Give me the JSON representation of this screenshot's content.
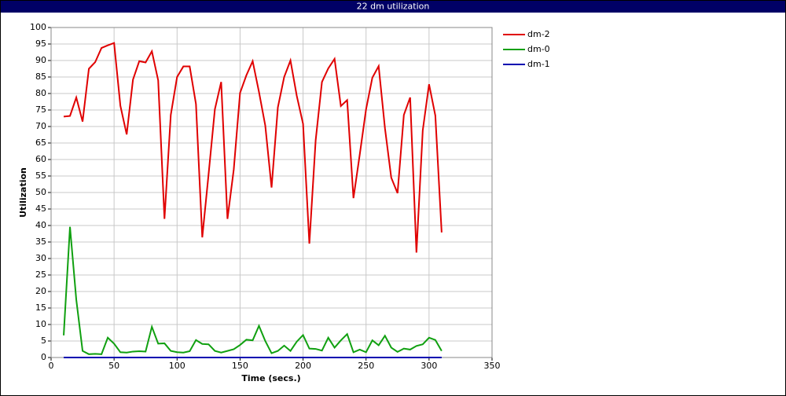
{
  "chart_data": {
    "type": "line",
    "title": "22 dm utilization",
    "xlabel": "Time (secs.)",
    "ylabel": "Utilization",
    "x": [
      10,
      15,
      20,
      25,
      30,
      35,
      40,
      45,
      50,
      55,
      60,
      65,
      70,
      75,
      80,
      85,
      90,
      95,
      100,
      105,
      110,
      115,
      120,
      125,
      130,
      135,
      140,
      145,
      150,
      155,
      160,
      165,
      170,
      175,
      180,
      185,
      190,
      195,
      200,
      205,
      210,
      215,
      220,
      225,
      230,
      235,
      240,
      245,
      250,
      255,
      260,
      265,
      270,
      275,
      280,
      285,
      290,
      295,
      300,
      305,
      310
    ],
    "series": [
      {
        "name": "dm-2",
        "color": "#e00000",
        "values": [
          73,
          73.2,
          78.8,
          71.5,
          87.5,
          89.5,
          93.8,
          94.6,
          95.3,
          76.3,
          67.6,
          84.2,
          89.8,
          89.4,
          92.8,
          84,
          42,
          73.5,
          85,
          88.2,
          88.2,
          76.8,
          36.4,
          55.5,
          75.2,
          83.5,
          42,
          57,
          80.2,
          85.5,
          89.8,
          80.5,
          70.3,
          51.5,
          75.8,
          85,
          90,
          79.3,
          70.8,
          34.5,
          65.8,
          83.5,
          87.6,
          90.5,
          76.2,
          78,
          48.3,
          61.5,
          75.2,
          84.8,
          88.3,
          69.5,
          54.5,
          49.8,
          73.5,
          78.8,
          31.8,
          68.8,
          82.8,
          73.3,
          37.9
        ]
      },
      {
        "name": "dm-0",
        "color": "#10a010",
        "values": [
          6.7,
          39.6,
          17.5,
          2,
          1,
          1.1,
          1,
          6,
          4.2,
          1.6,
          1.5,
          1.8,
          1.9,
          1.8,
          9.3,
          4.2,
          4.3,
          2,
          1.6,
          1.5,
          1.9,
          5.3,
          4.1,
          4,
          2,
          1.5,
          2,
          2.5,
          3.8,
          5.4,
          5.2,
          9.6,
          5,
          1.3,
          2,
          3.6,
          2,
          4.8,
          6.8,
          2.7,
          2.6,
          2.1,
          6,
          3,
          5.2,
          7.1,
          1.6,
          2.4,
          1.6,
          5.2,
          3.7,
          6.6,
          3,
          1.7,
          2.7,
          2.4,
          3.5,
          4,
          6,
          5.3,
          2
        ]
      },
      {
        "name": "dm-1",
        "color": "#0000b0",
        "values": [
          0,
          0,
          0,
          0,
          0,
          0,
          0,
          0,
          0,
          0,
          0,
          0,
          0,
          0,
          0,
          0,
          0,
          0,
          0,
          0,
          0,
          0,
          0,
          0,
          0,
          0,
          0,
          0,
          0,
          0,
          0,
          0,
          0,
          0,
          0,
          0,
          0,
          0,
          0,
          0,
          0,
          0,
          0,
          0,
          0,
          0,
          0,
          0,
          0,
          0,
          0,
          0,
          0,
          0,
          0,
          0,
          0,
          0,
          0,
          0,
          0
        ]
      }
    ],
    "xlim": [
      0,
      350
    ],
    "xticks": [
      0,
      50,
      100,
      150,
      200,
      250,
      300,
      350
    ],
    "ylim": [
      0,
      100
    ],
    "yticks": [
      0,
      5,
      10,
      15,
      20,
      25,
      30,
      35,
      40,
      45,
      50,
      55,
      60,
      65,
      70,
      75,
      80,
      85,
      90,
      95,
      100
    ],
    "grid": true,
    "legend": "right"
  }
}
